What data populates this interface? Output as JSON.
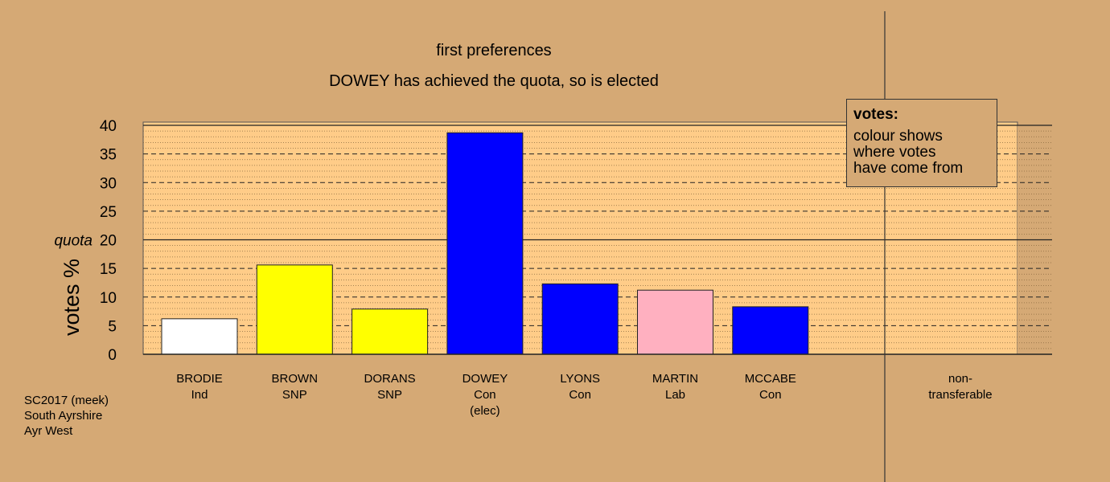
{
  "chart_data": {
    "type": "bar",
    "title": "first preferences",
    "subtitle": "DOWEY has achieved the quota, so is elected",
    "ylabel": "votes %",
    "ylim": [
      0,
      40
    ],
    "yticks": [
      0,
      5,
      10,
      15,
      20,
      25,
      30,
      35,
      40
    ],
    "quota": 20,
    "quota_label": "quota",
    "categories": [
      {
        "name": "BRODIE",
        "party": "Ind",
        "value": 6.2,
        "color": "#ffffff",
        "note": ""
      },
      {
        "name": "BROWN",
        "party": "SNP",
        "value": 15.6,
        "color": "#ffff00",
        "note": ""
      },
      {
        "name": "DORANS",
        "party": "SNP",
        "value": 7.9,
        "color": "#ffff00",
        "note": ""
      },
      {
        "name": "DOWEY",
        "party": "Con",
        "value": 38.7,
        "color": "#0000ff",
        "note": "(elec)"
      },
      {
        "name": "LYONS",
        "party": "Con",
        "value": 12.3,
        "color": "#0000ff",
        "note": ""
      },
      {
        "name": "MARTIN",
        "party": "Lab",
        "value": 11.2,
        "color": "#ffb0c0",
        "note": ""
      },
      {
        "name": "MCCABE",
        "party": "Con",
        "value": 8.3,
        "color": "#0000ff",
        "note": ""
      }
    ],
    "non_transferable": {
      "label_line1": "non-",
      "label_line2": "transferable",
      "value": 0
    },
    "legend": {
      "title": "votes:",
      "lines": [
        "colour shows",
        "where votes",
        "have come from"
      ],
      "position": "top-right"
    },
    "colors": {
      "background": "#d5a975",
      "plot_area": "#ffcc88"
    }
  },
  "footer": {
    "line1": "SC2017 (meek)",
    "line2": "South Ayrshire",
    "line3": "Ayr West"
  }
}
